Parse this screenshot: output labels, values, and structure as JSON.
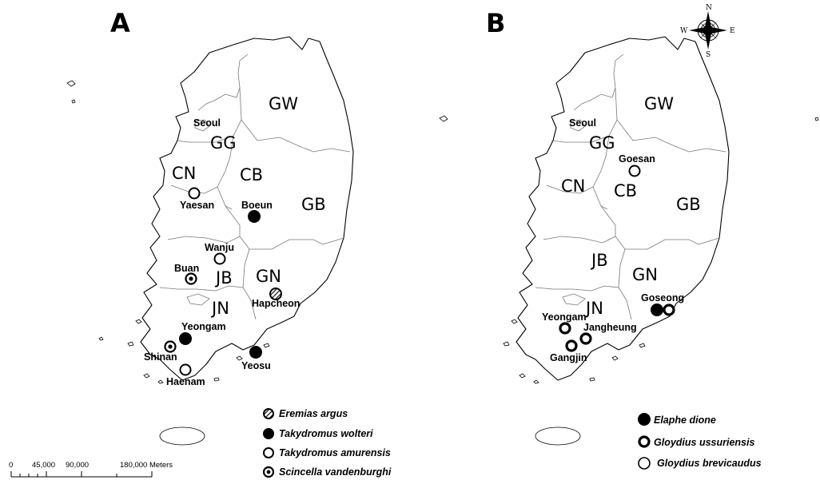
{
  "panels": [
    {
      "letter": "A",
      "provinces": [
        "GW",
        "GG",
        "CN",
        "CB",
        "GB",
        "JB",
        "GN",
        "JN"
      ],
      "sites": [
        "Seoul",
        "Yaesan",
        "Boeun",
        "Wanju",
        "Buan",
        "Hapcheon",
        "Yeongam",
        "Shinan",
        "Haenam",
        "Yeosu"
      ],
      "legend": [
        {
          "symbol": "hatched-circle",
          "label": "Eremias argus"
        },
        {
          "symbol": "filled-circle",
          "label": "Takydromus wolteri"
        },
        {
          "symbol": "open-circle",
          "label": "Takydromus amurensis"
        },
        {
          "symbol": "dot-ring",
          "label": "Scincella vandenburghi"
        }
      ],
      "scale_ticks": [
        "0",
        "45,000",
        "90,000",
        "180,000 Meters"
      ]
    },
    {
      "letter": "B",
      "provinces": [
        "GW",
        "GG",
        "CN",
        "CB",
        "GB",
        "JB",
        "GN",
        "JN"
      ],
      "sites": [
        "Seoul",
        "Goesan",
        "Goseong",
        "Yeongam",
        "Jangheung",
        "Gangjin"
      ],
      "legend": [
        {
          "symbol": "filled-circle",
          "label": "Elaphe dione"
        },
        {
          "symbol": "thick-ring",
          "label": "Gloydius ussuriensis"
        },
        {
          "symbol": "open-circle",
          "label": "Gloydius brevicaudus"
        }
      ],
      "compass": {
        "n": "N",
        "s": "S",
        "e": "E",
        "w": "W"
      }
    }
  ],
  "colors": {
    "outline": "#000000",
    "province_border": "#777777",
    "background": "#ffffff"
  }
}
